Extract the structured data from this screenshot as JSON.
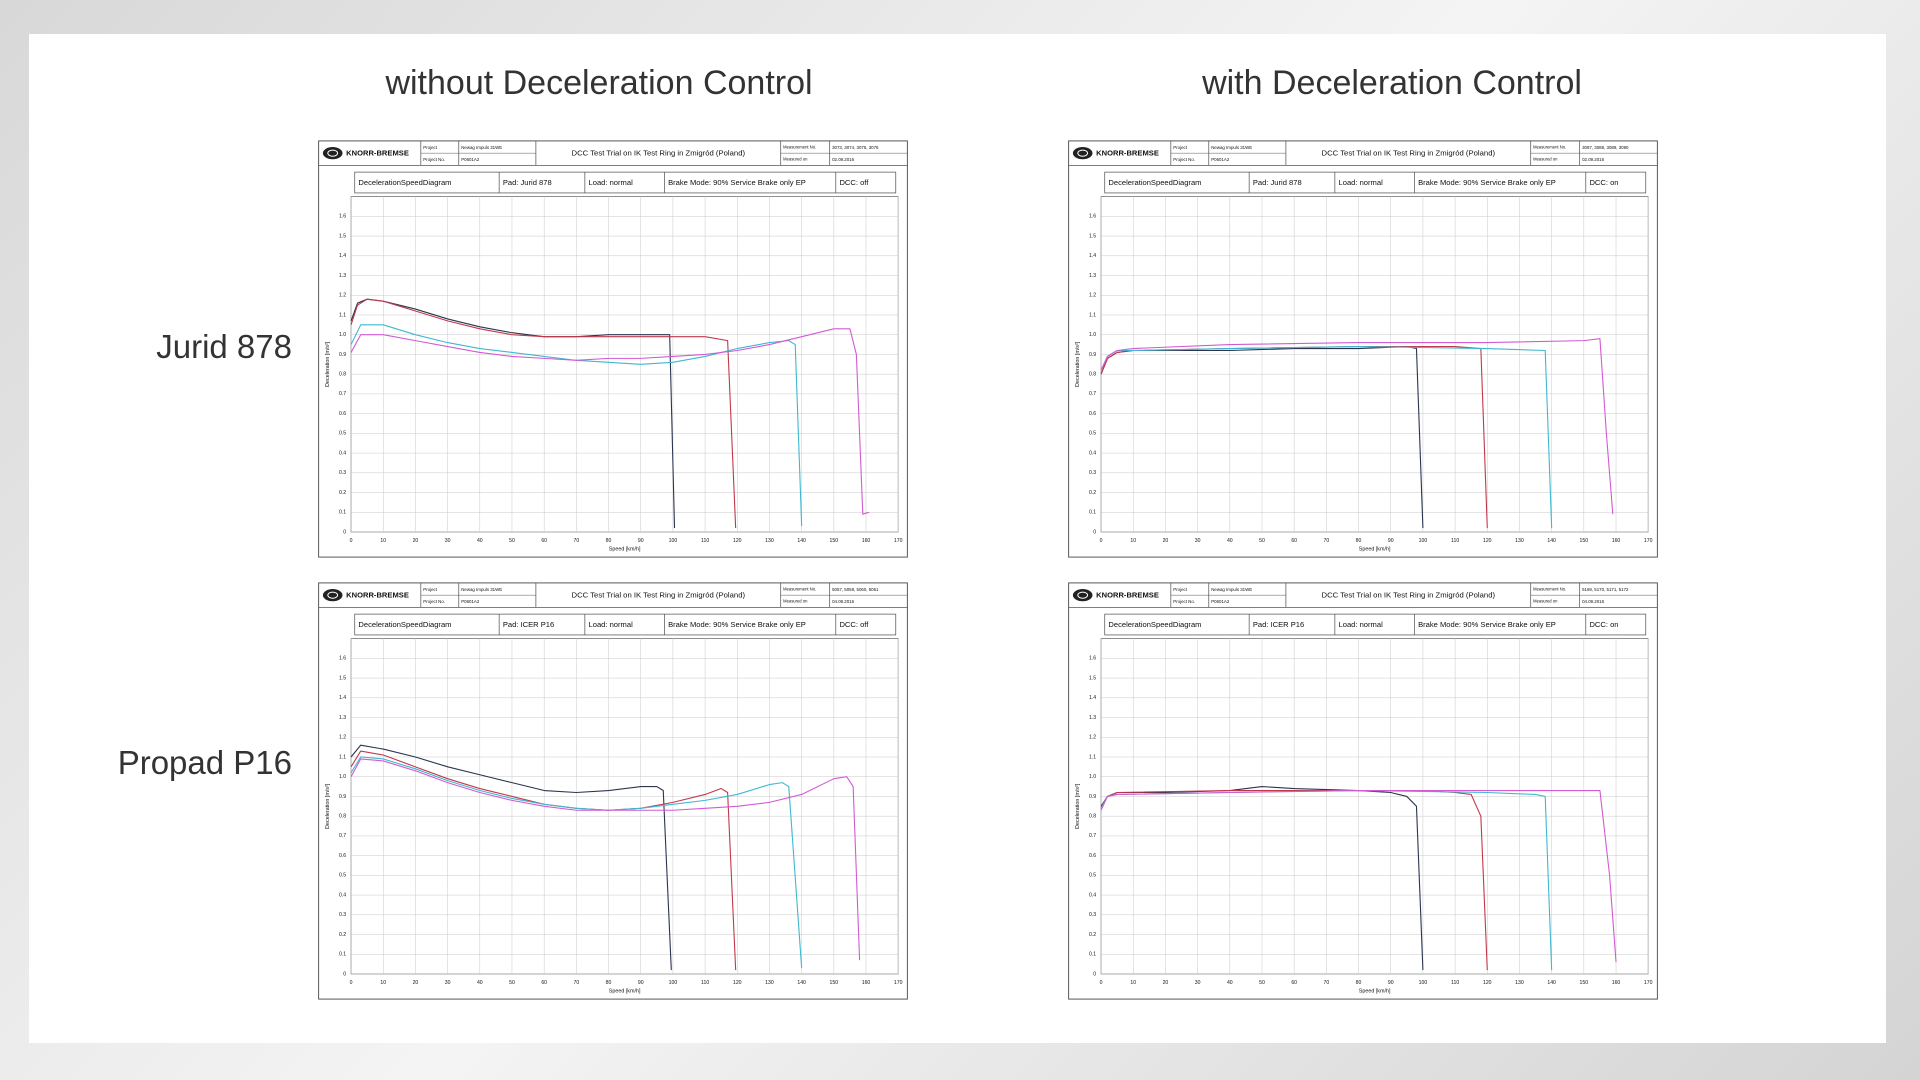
{
  "slide": {
    "column_titles": [
      "without Deceleration Control",
      "with Deceleration Control"
    ],
    "row_labels": [
      "Jurid 878",
      "Propad P16"
    ]
  },
  "chart_data": [
    {
      "type": "line",
      "header": {
        "logo": "KNORR-BREMSE",
        "project_label": "Project",
        "project": "Newag Impuls 31WE",
        "project_no_label": "Project No.",
        "project_no": "P0601A2",
        "title": "DCC Test Trial on IK Test Ring in Zmigród (Poland)",
        "measurement_label": "Measurement No.",
        "measurement": "3073, 3074, 3075, 3076",
        "date_label": "Measured on",
        "date": "02.09.2016"
      },
      "subtitle_cells": [
        "DecelerationSpeedDiagram",
        "Pad: Jurid 878",
        "Load: normal",
        "Brake Mode: 90% Service Brake only EP",
        "DCC: off"
      ],
      "xlabel": "Speed [km/h]",
      "ylabel": "Deceleration [m/s²]",
      "xlim": [
        0,
        170
      ],
      "ylim": [
        0,
        1.7
      ],
      "grid": true,
      "xticks": [
        0,
        10,
        20,
        30,
        40,
        50,
        60,
        70,
        80,
        90,
        100,
        110,
        120,
        130,
        140,
        150,
        160,
        170
      ],
      "yticks": [
        0,
        0.1,
        0.2,
        0.3,
        0.4,
        0.5,
        0.6,
        0.7,
        0.8,
        0.9,
        {
          "value": 1,
          "label": "1.0"
        },
        1.1,
        1.2,
        1.3,
        1.4,
        1.5,
        1.6
      ],
      "series": [
        {
          "color": "#2b3550",
          "x": [
            0,
            2,
            5,
            10,
            20,
            30,
            40,
            50,
            60,
            70,
            80,
            90,
            99,
            100.5
          ],
          "values": [
            1.07,
            1.16,
            1.18,
            1.17,
            1.13,
            1.08,
            1.04,
            1.01,
            0.99,
            0.99,
            1.0,
            1.0,
            1.0,
            0.02
          ]
        },
        {
          "color": "#c0394b",
          "x": [
            0,
            2,
            5,
            10,
            20,
            30,
            40,
            50,
            60,
            70,
            80,
            90,
            100,
            110,
            117,
            119.5
          ],
          "values": [
            1.05,
            1.15,
            1.18,
            1.17,
            1.12,
            1.07,
            1.03,
            1.0,
            0.99,
            0.99,
            0.99,
            0.99,
            0.99,
            0.99,
            0.97,
            0.02
          ]
        },
        {
          "color": "#3fb8d0",
          "x": [
            0,
            3,
            10,
            20,
            30,
            40,
            50,
            60,
            70,
            80,
            90,
            100,
            110,
            120,
            130,
            136,
            138,
            140
          ],
          "values": [
            0.95,
            1.05,
            1.05,
            1.0,
            0.96,
            0.93,
            0.91,
            0.89,
            0.87,
            0.86,
            0.85,
            0.86,
            0.89,
            0.93,
            0.96,
            0.97,
            0.95,
            0.03
          ]
        },
        {
          "color": "#d25ad4",
          "x": [
            0,
            3,
            10,
            20,
            30,
            40,
            50,
            60,
            70,
            80,
            90,
            100,
            110,
            120,
            130,
            140,
            150,
            155,
            157,
            159,
            161
          ],
          "values": [
            0.91,
            1.0,
            1.0,
            0.97,
            0.94,
            0.91,
            0.89,
            0.88,
            0.87,
            0.88,
            0.88,
            0.89,
            0.9,
            0.92,
            0.95,
            0.99,
            1.03,
            1.03,
            0.9,
            0.09,
            0.1
          ]
        }
      ]
    },
    {
      "type": "line",
      "header": {
        "logo": "KNORR-BREMSE",
        "project_label": "Project",
        "project": "Newag Impuls 31WE",
        "project_no_label": "Project No.",
        "project_no": "P0601A2",
        "title": "DCC Test Trial on IK Test Ring in Zmigród (Poland)",
        "measurement_label": "Measurement No.",
        "measurement": "3087, 3088, 3089, 3090",
        "date_label": "Measured on",
        "date": "02.09.2016"
      },
      "subtitle_cells": [
        "DecelerationSpeedDiagram",
        "Pad: Jurid 878",
        "Load: normal",
        "Brake Mode: 90% Service Brake only EP",
        "DCC: on"
      ],
      "xlabel": "Speed [km/h]",
      "ylabel": "Deceleration [m/s²]",
      "xlim": [
        0,
        170
      ],
      "ylim": [
        0,
        1.7
      ],
      "grid": true,
      "xticks": [
        0,
        10,
        20,
        30,
        40,
        50,
        60,
        70,
        80,
        90,
        100,
        110,
        120,
        130,
        140,
        150,
        160,
        170
      ],
      "yticks": [
        0,
        0.1,
        0.2,
        0.3,
        0.4,
        0.5,
        0.6,
        0.7,
        0.8,
        0.9,
        {
          "value": 1,
          "label": "1.0"
        },
        1.1,
        1.2,
        1.3,
        1.4,
        1.5,
        1.6
      ],
      "series": [
        {
          "color": "#2b3550",
          "x": [
            0,
            2,
            5,
            10,
            20,
            40,
            60,
            80,
            95,
            98,
            100
          ],
          "values": [
            0.8,
            0.88,
            0.91,
            0.92,
            0.92,
            0.92,
            0.93,
            0.93,
            0.94,
            0.93,
            0.02
          ]
        },
        {
          "color": "#c0394b",
          "x": [
            0,
            2,
            5,
            10,
            40,
            80,
            110,
            118,
            120
          ],
          "values": [
            0.8,
            0.88,
            0.91,
            0.92,
            0.93,
            0.94,
            0.94,
            0.93,
            0.02
          ]
        },
        {
          "color": "#3fb8d0",
          "x": [
            0,
            2,
            5,
            10,
            40,
            80,
            120,
            138,
            140
          ],
          "values": [
            0.82,
            0.89,
            0.92,
            0.92,
            0.93,
            0.94,
            0.93,
            0.92,
            0.02
          ]
        },
        {
          "color": "#d25ad4",
          "x": [
            0,
            2,
            5,
            10,
            40,
            80,
            120,
            150,
            155,
            157,
            159
          ],
          "values": [
            0.82,
            0.89,
            0.92,
            0.93,
            0.95,
            0.96,
            0.96,
            0.97,
            0.98,
            0.5,
            0.09
          ]
        }
      ]
    },
    {
      "type": "line",
      "header": {
        "logo": "KNORR-BREMSE",
        "project_label": "Project",
        "project": "Newag Impuls 31WE",
        "project_no_label": "Project No.",
        "project_no": "P0601A2",
        "title": "DCC Test Trial on IK Test Ring in Zmigród (Poland)",
        "measurement_label": "Measurement No.",
        "measurement": "5057, 5058, 5060, 5061",
        "date_label": "Measured on",
        "date": "04.09.2016"
      },
      "subtitle_cells": [
        "DecelerationSpeedDiagram",
        "Pad: ICER P16",
        "Load: normal",
        "Brake Mode: 90% Service Brake only EP",
        "DCC: off"
      ],
      "xlabel": "Speed [km/h]",
      "ylabel": "Deceleration [m/s²]",
      "xlim": [
        0,
        170
      ],
      "ylim": [
        0,
        1.7
      ],
      "grid": true,
      "xticks": [
        0,
        10,
        20,
        30,
        40,
        50,
        60,
        70,
        80,
        90,
        100,
        110,
        120,
        130,
        140,
        150,
        160,
        170
      ],
      "yticks": [
        0,
        0.1,
        0.2,
        0.3,
        0.4,
        0.5,
        0.6,
        0.7,
        0.8,
        0.9,
        {
          "value": 1,
          "label": "1.0"
        },
        1.1,
        1.2,
        1.3,
        1.4,
        1.5,
        1.6
      ],
      "series": [
        {
          "color": "#2b3550",
          "x": [
            0,
            3,
            10,
            20,
            30,
            40,
            50,
            60,
            70,
            80,
            90,
            95,
            97,
            99.5
          ],
          "values": [
            1.1,
            1.16,
            1.14,
            1.1,
            1.05,
            1.01,
            0.97,
            0.93,
            0.92,
            0.93,
            0.95,
            0.95,
            0.93,
            0.02
          ]
        },
        {
          "color": "#c0394b",
          "x": [
            0,
            3,
            10,
            20,
            30,
            40,
            50,
            60,
            70,
            80,
            90,
            100,
            110,
            115,
            117,
            119.5
          ],
          "values": [
            1.05,
            1.13,
            1.11,
            1.05,
            0.99,
            0.94,
            0.9,
            0.86,
            0.84,
            0.83,
            0.84,
            0.87,
            0.91,
            0.94,
            0.92,
            0.02
          ]
        },
        {
          "color": "#3fb8d0",
          "x": [
            0,
            3,
            10,
            20,
            30,
            40,
            50,
            60,
            70,
            80,
            90,
            100,
            110,
            120,
            130,
            134,
            136,
            140
          ],
          "values": [
            1.02,
            1.1,
            1.09,
            1.04,
            0.98,
            0.93,
            0.89,
            0.86,
            0.84,
            0.83,
            0.84,
            0.86,
            0.88,
            0.91,
            0.96,
            0.97,
            0.95,
            0.03
          ]
        },
        {
          "color": "#d25ad4",
          "x": [
            0,
            3,
            10,
            20,
            30,
            40,
            50,
            60,
            70,
            80,
            90,
            100,
            110,
            120,
            130,
            140,
            150,
            154,
            156,
            158
          ],
          "values": [
            1.0,
            1.09,
            1.08,
            1.03,
            0.97,
            0.92,
            0.88,
            0.85,
            0.83,
            0.83,
            0.83,
            0.83,
            0.84,
            0.85,
            0.87,
            0.91,
            0.99,
            1.0,
            0.95,
            0.07
          ]
        }
      ]
    },
    {
      "type": "line",
      "header": {
        "logo": "KNORR-BREMSE",
        "project_label": "Project",
        "project": "Newag Impuls 31WE",
        "project_no_label": "Project No.",
        "project_no": "P0601A2",
        "title": "DCC Test Trial on IK Test Ring in Zmigród (Poland)",
        "measurement_label": "Measurement No.",
        "measurement": "5169, 5170, 5171, 5172",
        "date_label": "Measured on",
        "date": "04.09.2016"
      },
      "subtitle_cells": [
        "DecelerationSpeedDiagram",
        "Pad: ICER P16",
        "Load: normal",
        "Brake Mode: 90% Service Brake only EP",
        "DCC: on"
      ],
      "xlabel": "Speed [km/h]",
      "ylabel": "Deceleration [m/s²]",
      "xlim": [
        0,
        170
      ],
      "ylim": [
        0,
        1.7
      ],
      "grid": true,
      "xticks": [
        0,
        10,
        20,
        30,
        40,
        50,
        60,
        70,
        80,
        90,
        100,
        110,
        120,
        130,
        140,
        150,
        160,
        170
      ],
      "yticks": [
        0,
        0.1,
        0.2,
        0.3,
        0.4,
        0.5,
        0.6,
        0.7,
        0.8,
        0.9,
        {
          "value": 1,
          "label": "1.0"
        },
        1.1,
        1.2,
        1.3,
        1.4,
        1.5,
        1.6
      ],
      "series": [
        {
          "color": "#2b3550",
          "x": [
            0,
            2,
            5,
            20,
            40,
            50,
            60,
            80,
            90,
            95,
            98,
            100
          ],
          "values": [
            0.85,
            0.9,
            0.92,
            0.92,
            0.93,
            0.95,
            0.94,
            0.93,
            0.92,
            0.9,
            0.85,
            0.02
          ]
        },
        {
          "color": "#c0394b",
          "x": [
            0,
            2,
            5,
            40,
            80,
            100,
            110,
            115,
            118,
            120
          ],
          "values": [
            0.84,
            0.9,
            0.92,
            0.93,
            0.93,
            0.93,
            0.92,
            0.91,
            0.8,
            0.02
          ]
        },
        {
          "color": "#3fb8d0",
          "x": [
            0,
            2,
            5,
            40,
            80,
            120,
            135,
            138,
            140
          ],
          "values": [
            0.84,
            0.9,
            0.91,
            0.92,
            0.93,
            0.92,
            0.91,
            0.9,
            0.02
          ]
        },
        {
          "color": "#d25ad4",
          "x": [
            0,
            2,
            5,
            40,
            80,
            120,
            150,
            155,
            158,
            160
          ],
          "values": [
            0.83,
            0.9,
            0.91,
            0.92,
            0.93,
            0.93,
            0.93,
            0.93,
            0.5,
            0.06
          ]
        }
      ]
    }
  ]
}
